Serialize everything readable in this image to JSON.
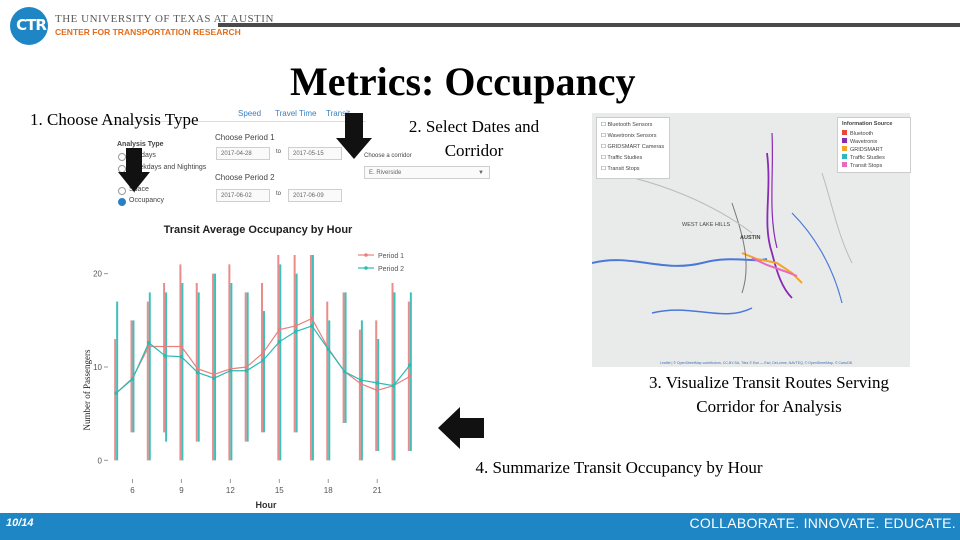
{
  "header": {
    "logo_text": "CTR",
    "university": "THE UNIVERSITY OF TEXAS AT AUSTIN",
    "center": "CENTER FOR TRANSPORTATION RESEARCH"
  },
  "slide": {
    "title": "Metrics: Occupancy",
    "step1": "1. Choose Analysis Type",
    "step2": "2. Select Dates and Corridor",
    "step3": "3. Visualize Transit Routes Serving Corridor for Analysis",
    "step4": "4. Summarize Transit Occupancy by Hour"
  },
  "panel": {
    "tabs": [
      "Speed",
      "Travel Time",
      "Transit"
    ],
    "analysis_type_label": "Analysis Type",
    "analysis_options": [
      "Holidays",
      "Weekdays and Nightings",
      "Space",
      "Occupancy"
    ],
    "selected_option": "Occupancy",
    "period1_label": "Choose Period 1",
    "period1_from": "2017-04-28",
    "period1_to": "2017-05-15",
    "period2_label": "Choose Period 2",
    "period2_from": "2017-06-02",
    "period2_to": "2017-06-09",
    "to_label": "to",
    "corridor_label": "Choose a corridor",
    "corridor_value": "E. Riverside"
  },
  "chart_data": {
    "type": "line",
    "title": "Transit Average Occupancy by Hour",
    "xlabel": "Hour",
    "ylabel": "Number of Passengers",
    "x": [
      5,
      6,
      7,
      8,
      9,
      10,
      11,
      12,
      13,
      14,
      15,
      16,
      17,
      18,
      19,
      20,
      21,
      22,
      23
    ],
    "xticks": [
      6,
      9,
      12,
      15,
      18,
      21
    ],
    "yticks": [
      0,
      10,
      20
    ],
    "ylim": [
      0,
      20
    ],
    "series": [
      {
        "name": "Period 1",
        "color": "#e88080",
        "values": [
          7.2,
          8.8,
          12.2,
          12.2,
          12.2,
          9.8,
          9.2,
          9.8,
          10.0,
          11.5,
          14.0,
          14.4,
          15.2,
          12.0,
          9.5,
          8.2,
          7.5,
          8.0,
          9.0
        ],
        "error_high": [
          13,
          15,
          17,
          19,
          21,
          19,
          20,
          21,
          18,
          19,
          23,
          23,
          22,
          17,
          18,
          14,
          15,
          19,
          17
        ],
        "error_low": [
          0,
          3,
          0,
          3,
          0,
          2,
          0,
          0,
          2,
          3,
          0,
          3,
          0,
          0,
          4,
          0,
          1,
          0,
          1
        ]
      },
      {
        "name": "Period 2",
        "color": "#2bbab4",
        "values": [
          7.2,
          8.7,
          12.6,
          11.2,
          11.1,
          9.4,
          8.8,
          9.6,
          9.6,
          10.7,
          12.7,
          13.8,
          14.4,
          11.9,
          9.5,
          8.6,
          8.3,
          8.0,
          10.2
        ],
        "error_high": [
          17,
          15,
          18,
          18,
          19,
          18,
          20,
          19,
          18,
          16,
          21,
          20,
          22,
          15,
          18,
          15,
          13,
          18,
          18
        ],
        "error_low": [
          0,
          3,
          0,
          2,
          0,
          2,
          0,
          0,
          2,
          3,
          0,
          3,
          0,
          0,
          4,
          0,
          1,
          0,
          1
        ]
      }
    ],
    "legend_position": "top-right",
    "grid": false
  },
  "map": {
    "legend_items": [
      "Bluetooth Sensors",
      "Wavetronix Sensors",
      "GRIDSMART Cameras",
      "Traffic Studies",
      "Transit Stops"
    ],
    "info_title": "Information Source",
    "info_items": [
      {
        "label": "Bluetooth",
        "color": "#e8453c"
      },
      {
        "label": "Wavetronix",
        "color": "#8b2bb5"
      },
      {
        "label": "GRIDSMART",
        "color": "#f2a52c"
      },
      {
        "label": "Traffic Studies",
        "color": "#2bb6c4"
      },
      {
        "label": "Transit Stops",
        "color": "#e66ac0"
      }
    ],
    "place_labels": [
      "AUSTIN",
      "WEST LAKE HILLS"
    ],
    "attribution": "Leaflet | © OpenStreetMap contributors, CC-BY-SA, Tiles © Esri — Esri, DeLorme, NAVTEQ, © OpenStreetMap, © CartoDB"
  },
  "footer": {
    "page": "10/14",
    "motto": "COLLABORATE. INNOVATE. EDUCATE."
  },
  "colors": {
    "brand_blue": "#1f86c6",
    "brand_orange": "#e36d1b"
  }
}
